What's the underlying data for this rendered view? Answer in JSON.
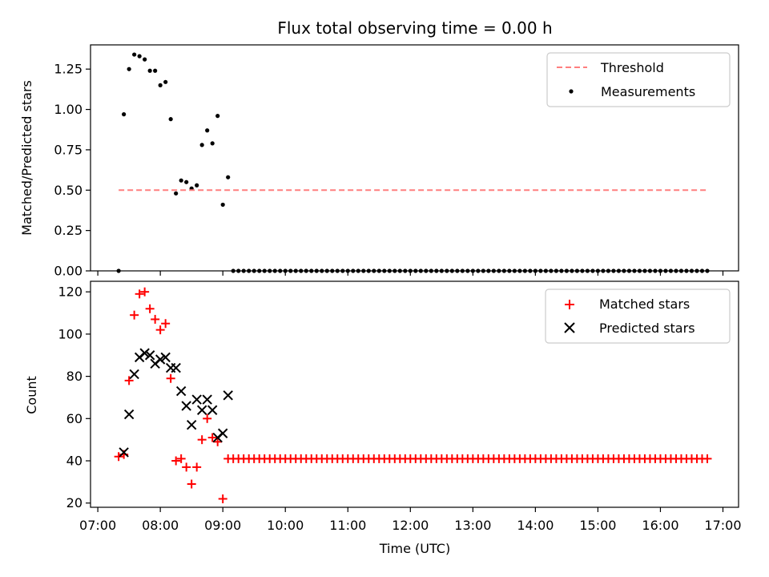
{
  "chart_data": [
    {
      "type": "scatter",
      "title": "Flux total observing time = 0.00 h",
      "xlabel": "",
      "ylabel": "Matched/Predicted stars",
      "ylim": [
        0,
        1.4
      ],
      "yticks": [
        "0.00",
        "0.25",
        "0.50",
        "0.75",
        "1.00",
        "1.25"
      ],
      "legend": {
        "position": "upper right",
        "entries": [
          "Threshold",
          "Measurements"
        ]
      },
      "series": [
        {
          "name": "Measurements",
          "marker": "dot",
          "color": "#000000",
          "x": [
            "07:20",
            "07:25",
            "07:30",
            "07:35",
            "07:40",
            "07:45",
            "07:50",
            "07:55",
            "08:00",
            "08:05",
            "08:10",
            "08:15",
            "08:20",
            "08:25",
            "08:30",
            "08:35",
            "08:40",
            "08:45",
            "08:50",
            "08:55",
            "09:00",
            "09:05"
          ],
          "y": [
            0.0,
            0.97,
            1.25,
            1.34,
            1.33,
            1.31,
            1.24,
            1.24,
            1.15,
            1.17,
            0.94,
            0.48,
            0.56,
            0.55,
            0.51,
            0.53,
            0.78,
            0.87,
            0.79,
            0.96,
            0.41,
            0.58
          ]
        },
        {
          "name": "Measurements (flat)",
          "marker": "dot",
          "color": "#000000",
          "x_start": "09:10",
          "x_end": "16:45",
          "step_minutes": 5,
          "y": 0.0
        },
        {
          "name": "Threshold",
          "type": "line",
          "style": "dashed",
          "color": "#ff7f7f",
          "x": [
            "07:20",
            "16:45"
          ],
          "y": [
            0.5,
            0.5
          ]
        }
      ]
    },
    {
      "type": "scatter",
      "title": "",
      "xlabel": "Time (UTC)",
      "ylabel": "Count",
      "ylim": [
        18,
        125
      ],
      "yticks": [
        "20",
        "40",
        "60",
        "80",
        "100",
        "120"
      ],
      "xticks": [
        "07:00",
        "08:00",
        "09:00",
        "10:00",
        "11:00",
        "12:00",
        "13:00",
        "14:00",
        "15:00",
        "16:00",
        "17:00"
      ],
      "xlim": [
        "06:53",
        "17:15"
      ],
      "legend": {
        "position": "upper right",
        "entries": [
          "Matched stars",
          "Predicted stars"
        ]
      },
      "series": [
        {
          "name": "Matched stars",
          "marker": "plus",
          "color": "#ff0000",
          "x": [
            "07:20",
            "07:25",
            "07:30",
            "07:35",
            "07:40",
            "07:45",
            "07:50",
            "07:55",
            "08:00",
            "08:05",
            "08:10",
            "08:15",
            "08:20",
            "08:25",
            "08:30",
            "08:35",
            "08:40",
            "08:45",
            "08:50",
            "08:55",
            "09:00",
            "09:05"
          ],
          "y": [
            42,
            43,
            78,
            109,
            119,
            120,
            112,
            107,
            102,
            105,
            79,
            40,
            41,
            37,
            29,
            37,
            50,
            60,
            51,
            49,
            22,
            41
          ]
        },
        {
          "name": "Matched stars (flat)",
          "marker": "plus",
          "color": "#ff0000",
          "x_start": "09:10",
          "x_end": "16:45",
          "step_minutes": 5,
          "y": 41
        },
        {
          "name": "Predicted stars",
          "marker": "x",
          "color": "#000000",
          "x": [
            "07:25",
            "07:30",
            "07:35",
            "07:40",
            "07:45",
            "07:50",
            "07:55",
            "08:00",
            "08:05",
            "08:10",
            "08:15",
            "08:20",
            "08:25",
            "08:30",
            "08:35",
            "08:40",
            "08:45",
            "08:50",
            "08:55",
            "09:00",
            "09:05"
          ],
          "y": [
            44,
            62,
            81,
            89,
            91,
            90,
            86,
            88,
            89,
            84,
            84,
            73,
            66,
            57,
            69,
            64,
            69,
            64,
            51,
            53,
            71
          ]
        }
      ]
    }
  ]
}
